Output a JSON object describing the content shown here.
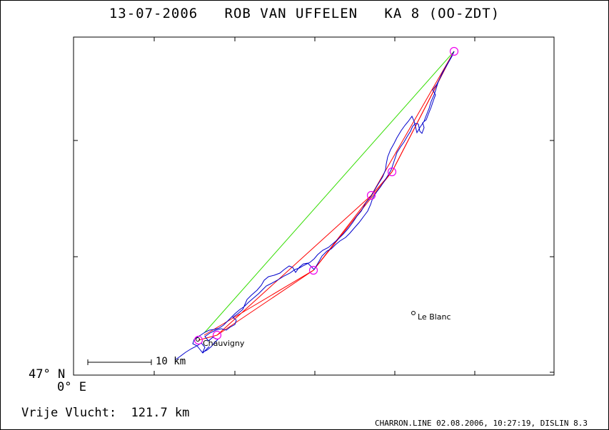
{
  "title": "13-07-2006   ROB VAN UFFELEN   KA 8 (OO-ZDT)",
  "map": {
    "lat_label": "47° N",
    "lon_label": "0° E",
    "scale_bar_label": "10 km",
    "places": [
      {
        "name": "Chauvigny"
      },
      {
        "name": "Le Blanc"
      }
    ],
    "colors": {
      "track": "#0000cc",
      "task": "#ff0000",
      "straight_line": "#33dd00",
      "turnpoints": "#ee00ee"
    }
  },
  "footer": {
    "distance": "Vrije Vlucht:  121.7 km",
    "meta": "CHARRON.LINE 02.08.2006, 10:27:19, DISLIN 8.3"
  }
}
